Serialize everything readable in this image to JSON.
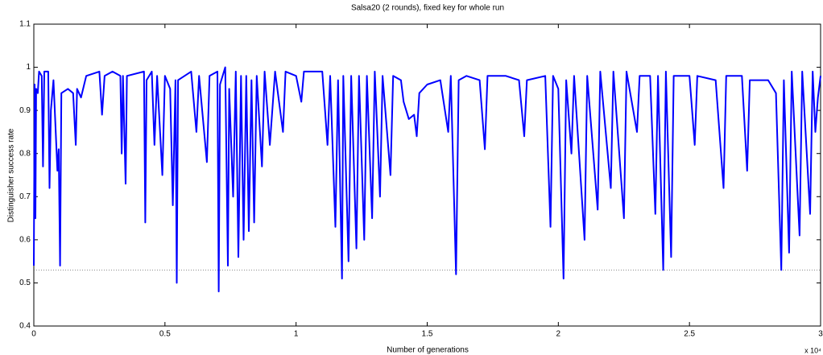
{
  "chart_data": {
    "type": "line",
    "title": "Salsa20 (2 rounds), fixed key for whole run",
    "x_label": "Number of generations",
    "y_label": "Distinguisher success rate",
    "x_multiplier": "x 10⁴",
    "xlim": [
      0,
      3
    ],
    "xticks": [
      0,
      0.5,
      1,
      1.5,
      2,
      2.5,
      3
    ],
    "ylim": [
      0.4,
      1.1
    ],
    "yticks": [
      0.4,
      0.5,
      0.6,
      0.7,
      0.8,
      0.9,
      1,
      1.1
    ],
    "reference_line": 0.53,
    "series": [
      {
        "color": "#0000ff",
        "x": [
          0,
          0.003,
          0.006,
          0.009,
          0.015,
          0.02,
          0.03,
          0.035,
          0.04,
          0.055,
          0.06,
          0.065,
          0.075,
          0.09,
          0.095,
          0.1,
          0.105,
          0.13,
          0.15,
          0.16,
          0.165,
          0.18,
          0.2,
          0.25,
          0.26,
          0.27,
          0.3,
          0.33,
          0.335,
          0.34,
          0.35,
          0.355,
          0.42,
          0.425,
          0.43,
          0.45,
          0.46,
          0.47,
          0.49,
          0.5,
          0.52,
          0.53,
          0.54,
          0.545,
          0.55,
          0.6,
          0.62,
          0.63,
          0.66,
          0.67,
          0.7,
          0.705,
          0.71,
          0.73,
          0.74,
          0.745,
          0.76,
          0.77,
          0.78,
          0.79,
          0.8,
          0.81,
          0.82,
          0.83,
          0.84,
          0.85,
          0.87,
          0.88,
          0.9,
          0.92,
          0.95,
          0.96,
          1,
          1.02,
          1.03,
          1.1,
          1.12,
          1.13,
          1.15,
          1.16,
          1.175,
          1.18,
          1.2,
          1.21,
          1.23,
          1.24,
          1.26,
          1.27,
          1.29,
          1.3,
          1.32,
          1.33,
          1.36,
          1.37,
          1.4,
          1.41,
          1.43,
          1.45,
          1.46,
          1.47,
          1.5,
          1.55,
          1.58,
          1.59,
          1.61,
          1.62,
          1.65,
          1.7,
          1.72,
          1.73,
          1.8,
          1.85,
          1.87,
          1.88,
          1.95,
          1.97,
          1.98,
          2,
          2.02,
          2.03,
          2.05,
          2.06,
          2.1,
          2.11,
          2.15,
          2.16,
          2.2,
          2.21,
          2.25,
          2.26,
          2.3,
          2.31,
          2.35,
          2.37,
          2.38,
          2.4,
          2.41,
          2.43,
          2.44,
          2.5,
          2.52,
          2.53,
          2.6,
          2.63,
          2.64,
          2.7,
          2.72,
          2.73,
          2.8,
          2.83,
          2.85,
          2.86,
          2.88,
          2.89,
          2.92,
          2.93,
          2.96,
          2.97,
          2.98,
          2.99,
          3
        ],
        "values": [
          0.54,
          0.96,
          0.65,
          0.95,
          0.94,
          0.99,
          0.98,
          0.77,
          0.99,
          0.99,
          0.72,
          0.9,
          0.97,
          0.76,
          0.81,
          0.54,
          0.94,
          0.95,
          0.94,
          0.82,
          0.95,
          0.93,
          0.98,
          0.99,
          0.89,
          0.98,
          0.99,
          0.98,
          0.8,
          0.98,
          0.73,
          0.98,
          0.99,
          0.64,
          0.97,
          0.99,
          0.82,
          0.98,
          0.75,
          0.98,
          0.95,
          0.68,
          0.97,
          0.5,
          0.97,
          0.99,
          0.85,
          0.98,
          0.78,
          0.98,
          0.99,
          0.48,
          0.96,
          1,
          0.54,
          0.95,
          0.7,
          0.99,
          0.56,
          0.98,
          0.6,
          0.98,
          0.62,
          0.97,
          0.64,
          0.98,
          0.77,
          0.99,
          0.82,
          0.99,
          0.85,
          0.99,
          0.98,
          0.92,
          0.99,
          0.99,
          0.82,
          0.98,
          0.63,
          0.97,
          0.51,
          0.98,
          0.55,
          0.98,
          0.58,
          0.98,
          0.6,
          0.98,
          0.65,
          0.99,
          0.7,
          0.98,
          0.75,
          0.98,
          0.97,
          0.92,
          0.88,
          0.89,
          0.84,
          0.94,
          0.96,
          0.97,
          0.85,
          0.98,
          0.52,
          0.97,
          0.98,
          0.97,
          0.81,
          0.98,
          0.98,
          0.97,
          0.84,
          0.97,
          0.98,
          0.63,
          0.98,
          0.95,
          0.51,
          0.97,
          0.8,
          0.98,
          0.6,
          0.98,
          0.67,
          0.99,
          0.72,
          0.99,
          0.65,
          0.99,
          0.85,
          0.98,
          0.98,
          0.66,
          0.98,
          0.53,
          0.99,
          0.56,
          0.98,
          0.98,
          0.82,
          0.98,
          0.97,
          0.72,
          0.98,
          0.98,
          0.76,
          0.97,
          0.97,
          0.94,
          0.53,
          0.97,
          0.57,
          0.99,
          0.61,
          0.99,
          0.66,
          0.99,
          0.85,
          0.93,
          0.98
        ]
      }
    ]
  }
}
